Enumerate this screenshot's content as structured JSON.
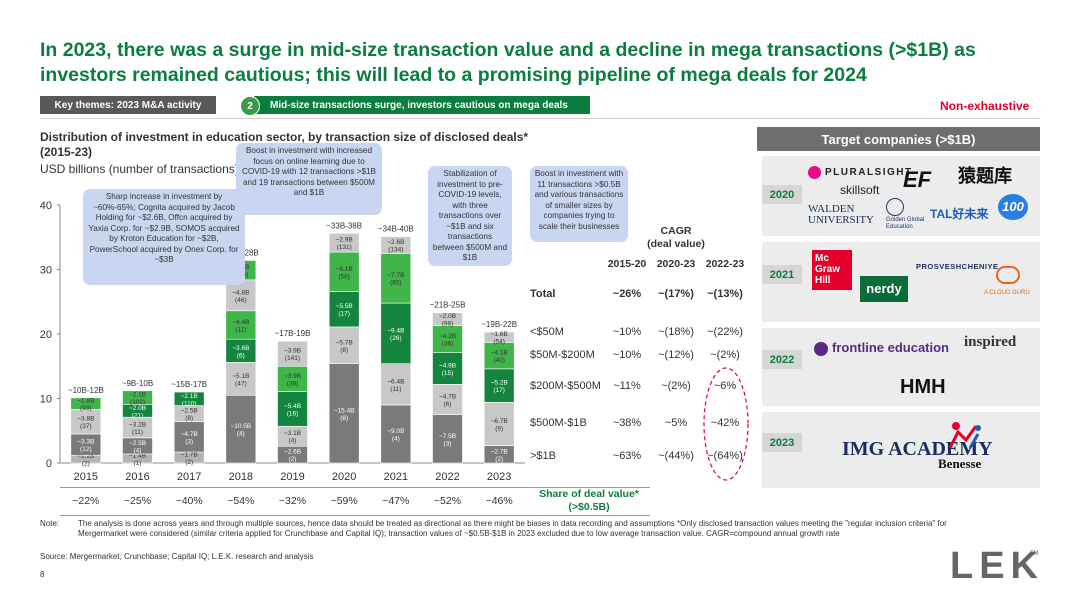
{
  "title": "In 2023, there was a surge in mid-size transaction value and a decline in mega transactions (>$1B) as investors remained cautious; this will lead to a promising pipeline of mega deals for 2024",
  "theme_left": "Key themes: 2023 M&A activity",
  "theme_num": "2",
  "theme_right": "Mid-size transactions surge, investors cautious on mega deals",
  "non_exhaustive": "Non-exhaustive",
  "chart_title": "Distribution of investment in education sector, by transaction size of disclosed deals* (2015-23)",
  "chart_unit": "USD billions (number of transactions)",
  "colors": {
    "accent": "#0b7d3e",
    "lt50": "#b3b3b3",
    "m50_200": "#7a7a7a",
    "m200_500": "#c8c8c8",
    "m500_1b": "#14853f",
    "gt1b": "#3fb54a",
    "callout": "#c9d6f2",
    "alert": "#e4002b"
  },
  "callouts": {
    "c1": "Sharp increase in investment by ~60%-65%; Cognita acquired by Jacob Holding for ~$2.6B, Offcn acquired by Yaxia Corp. for ~$2.9B, SOMOS acquired by Kroton Education for ~$2B, PowerSchool acquired by Onex Corp. for ~$3B",
    "c2": "Boost in investment with increased focus on online learning due to COVID-19 with 12 transactions >$1B and 19 transactions between $500M and $1B",
    "c3": "Stabilization of investment to pre-COVID-19 levels, with three transactions over ~$1B and six transactions between $500M and $1B",
    "c4": "Boost in investment with 11 transactions >$0.5B and various transactions of smaller sizes by companies trying to scale their businesses"
  },
  "chart_data": {
    "type": "bar",
    "stacked": true,
    "categories": [
      "2015",
      "2016",
      "2017",
      "2018",
      "2019",
      "2020",
      "2021",
      "2022",
      "2023"
    ],
    "ylim": [
      0,
      40
    ],
    "yticks": [
      "0",
      "10",
      "20",
      "30",
      "40"
    ],
    "totals": [
      "~10B-12B",
      "~9B-10B",
      "~15B-17B",
      "~24B-28B",
      "~17B-19B",
      "~33B-38B",
      "~34B-40B",
      "~21B-25B",
      "~19B-22B"
    ],
    "series": [
      {
        "name": "<$50M",
        "values": [
          1.2,
          1.4,
          1.7,
          0,
          0,
          0,
          0,
          0,
          0
        ],
        "labels": [
          "~1.2B (2)",
          "~1.4B (1)",
          "~1.7B (2)",
          "",
          "",
          "",
          "",
          "",
          ""
        ]
      },
      {
        "name": "$50M-$200M",
        "values": [
          3.3,
          2.5,
          4.7,
          10.5,
          2.6,
          15.4,
          9.0,
          7.5,
          2.7
        ],
        "labels": [
          "~3.3B (12)",
          "~2.5B (4)",
          "~4.7B (3)",
          "~10.5B (4)",
          "~2.6B (2)",
          "~15.4B (8)",
          "~9.0B (4)",
          "~7.5B (3)",
          "~2.7B (2)"
        ]
      },
      {
        "name": "$200M-$500M",
        "values": [
          3.8,
          3.2,
          2.5,
          5.1,
          3.1,
          5.7,
          6.4,
          4.7,
          6.7
        ],
        "labels": [
          "~3.8B (37)",
          "~3.2B (11)",
          "~2.5B (8)",
          "~5.1B (47)",
          "~3.1B (4)",
          "~5.7B (8)",
          "~6.4B (11)",
          "~4.7B (6)",
          "~6.7B (9)"
        ]
      },
      {
        "name": "$500M-$1B",
        "values": [
          0,
          2.0,
          2.1,
          3.6,
          5.4,
          5.5,
          9.4,
          4.9,
          5.2
        ],
        "labels": [
          "",
          "~2.0B (21)",
          "~2.1B (110)",
          "~3.6B (6)",
          "~5.4B (16)",
          "~5.5B (17)",
          "~9.4B (26)",
          "~4.9B (15)",
          "~5.2B (17)"
        ]
      },
      {
        "name": ">$1B",
        "values": [
          1.8,
          2.1,
          0,
          4.4,
          3.9,
          6.1,
          7.7,
          4.2,
          4.1
        ],
        "labels": [
          "~1.8B (93)",
          "~2.1B (102)",
          "",
          "~4.4B (11)",
          "~3.9B (38)",
          "~6.1B (58)",
          "~7.7B (65)",
          "~4.2B (36)",
          "~4.1B (40)"
        ]
      },
      {
        "name": "top",
        "values": [
          0,
          0,
          0,
          4.8,
          3.9,
          2.9,
          2.6,
          2.0,
          1.6
        ],
        "labels": [
          "",
          "",
          "",
          "~4.8B (46)",
          "~3.9B (141)",
          "~2.9B (131)",
          "~2.6B (134)",
          "~2.0B (98)",
          "~1.6B (54)"
        ]
      },
      {
        "name": "top2",
        "values": [
          0,
          0,
          0,
          3.0,
          0,
          0,
          0,
          0,
          0
        ],
        "labels": [
          "",
          "",
          "",
          "~3.0B (155)",
          "",
          "",
          "",
          "",
          ""
        ]
      }
    ],
    "share": [
      "~22%",
      "~25%",
      "~40%",
      "~54%",
      "~32%",
      "~59%",
      "~47%",
      "~52%",
      "~46%"
    ],
    "share_label": "Share of deal value* (>$0.5B)"
  },
  "cagr": {
    "header": "CAGR\n(deal value)",
    "cols": [
      "2015-20",
      "2020-23",
      "2022-23"
    ],
    "rows": [
      {
        "label": "Total",
        "vals": [
          "~26%",
          "~(17%)",
          "~(13%)"
        ]
      },
      {
        "label": "<$50M",
        "vals": [
          "~10%",
          "~(18%)",
          "~(22%)"
        ]
      },
      {
        "label": "$50M-$200M",
        "vals": [
          "~10%",
          "~(12%)",
          "~(2%)"
        ]
      },
      {
        "label": "$200M-$500M",
        "vals": [
          "~11%",
          "~(2%)",
          "~6%"
        ]
      },
      {
        "label": "$500M-$1B",
        "vals": [
          "~38%",
          "~5%",
          "~42%"
        ]
      },
      {
        "label": ">$1B",
        "vals": [
          "~63%",
          "~(44%)",
          "~(64%)"
        ]
      }
    ]
  },
  "targets": {
    "header": "Target companies (>$1B)",
    "years": [
      "2020",
      "2021",
      "2022",
      "2023"
    ],
    "logos_2020": [
      "PLURALSIGHT",
      "skillsoft",
      "EF",
      "猿题库",
      "WALDEN UNIVERSITY",
      "Golden Global Education",
      "TAL好未来",
      "100"
    ],
    "logos_2021": [
      "Mc Graw Hill",
      "nerdy",
      "PROSVESHCHENIYE",
      "A CLOUD GURU"
    ],
    "logos_2022": [
      "frontline education",
      "inspired",
      "HMH"
    ],
    "logos_2023": [
      "IMG ACADEMY",
      "Benesse"
    ]
  },
  "note_label": "Note:",
  "note_text": "The analysis is done across years and through multiple sources, hence data should be treated as directional as there might be biases in data recording and assumptions *Only disclosed transaction values meeting the \"regular inclusion criteria\" for Mergermarket were considered (similar criteria applied for Crunchbase and Capital IQ); transaction values of ~$0.5B-$1B in 2023 excluded due to low average transaction value. CAGR=compound annual growth rate",
  "source": "Source: Mergermarket; Crunchbase; Capital IQ; L.E.K. research and analysis",
  "page_number": "8",
  "brand": "LEK"
}
